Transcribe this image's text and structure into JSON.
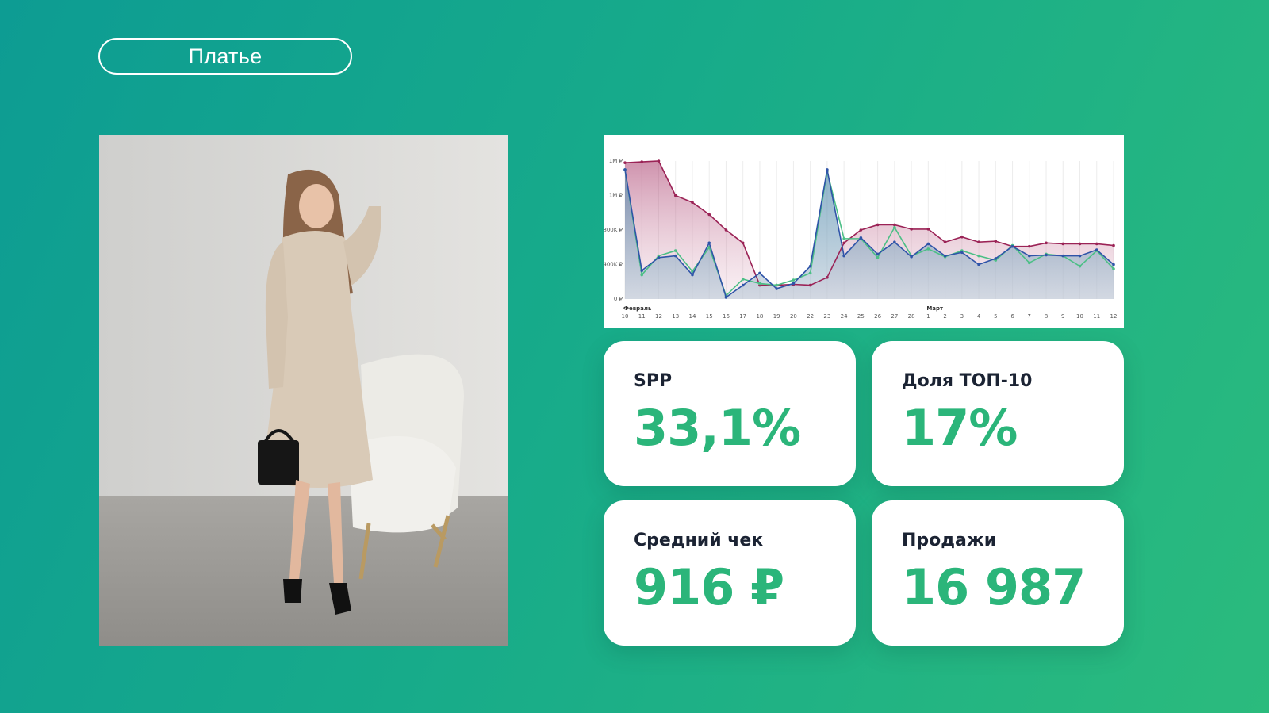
{
  "category": {
    "label": "Платье"
  },
  "photo": {
    "alt": "product-photo"
  },
  "stats": {
    "spp": {
      "label": "SPP",
      "value": "33,1%"
    },
    "top10": {
      "label": "Доля ТОП-10",
      "value": "17%"
    },
    "avg_check": {
      "label": "Средний чек",
      "value": "916 ₽"
    },
    "sales": {
      "label": "Продажи",
      "value": "16 987"
    }
  },
  "colors": {
    "accent": "#2bb57a",
    "series_red": "#9b2356",
    "series_blue": "#2f54a8",
    "series_green": "#4cbf86"
  },
  "chart_data": {
    "type": "area",
    "x": [
      "10",
      "11",
      "12",
      "13",
      "14",
      "15",
      "16",
      "17",
      "18",
      "19",
      "20",
      "22",
      "23",
      "24",
      "25",
      "26",
      "27",
      "28",
      "1",
      "2",
      "3",
      "4",
      "5",
      "6",
      "7",
      "8",
      "9",
      "10",
      "11",
      "12"
    ],
    "month_labels": [
      {
        "index": 0,
        "label": "Февраль"
      },
      {
        "index": 18,
        "label": "Март"
      }
    ],
    "y_ticks": [
      "0 ₽",
      "400K ₽",
      "800K ₽",
      "1M ₽",
      "1M ₽"
    ],
    "ylim": [
      0,
      1600000
    ],
    "series": [
      {
        "color": "#9b2356",
        "values": [
          1580000,
          1590000,
          1600000,
          1200000,
          1120000,
          980000,
          800000,
          650000,
          160000,
          160000,
          170000,
          160000,
          250000,
          650000,
          800000,
          860000,
          860000,
          810000,
          810000,
          660000,
          720000,
          660000,
          670000,
          610000,
          610000,
          650000,
          640000,
          640000,
          640000,
          620000
        ]
      },
      {
        "color": "#2f54a8",
        "values": [
          1500000,
          330000,
          480000,
          500000,
          280000,
          650000,
          20000,
          160000,
          300000,
          120000,
          180000,
          380000,
          1500000,
          500000,
          710000,
          520000,
          660000,
          490000,
          640000,
          500000,
          540000,
          400000,
          470000,
          610000,
          500000,
          510000,
          500000,
          500000,
          570000,
          400000
        ]
      },
      {
        "color": "#4cbf86",
        "values": [
          1500000,
          280000,
          500000,
          560000,
          320000,
          600000,
          40000,
          230000,
          180000,
          160000,
          220000,
          300000,
          1480000,
          700000,
          700000,
          480000,
          830000,
          500000,
          580000,
          490000,
          560000,
          500000,
          450000,
          620000,
          420000,
          520000,
          500000,
          380000,
          560000,
          350000
        ]
      }
    ]
  }
}
